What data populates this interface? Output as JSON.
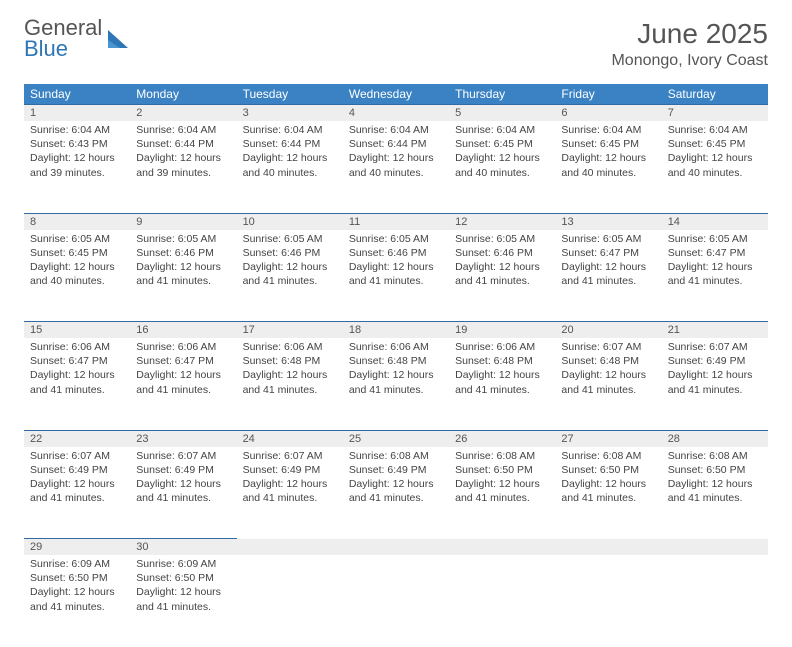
{
  "logo": {
    "word1": "General",
    "word2": "Blue"
  },
  "title": "June 2025",
  "location": "Monongo, Ivory Coast",
  "header_bg": "#3a82c4",
  "row_sep_color": "#2f6ca6",
  "daynum_bg": "#eeeeee",
  "text_color": "#444444",
  "day_headers": [
    "Sunday",
    "Monday",
    "Tuesday",
    "Wednesday",
    "Thursday",
    "Friday",
    "Saturday"
  ],
  "weeks": [
    [
      {
        "n": "1",
        "sr": "6:04 AM",
        "ss": "6:43 PM",
        "dl": "12 hours and 39 minutes."
      },
      {
        "n": "2",
        "sr": "6:04 AM",
        "ss": "6:44 PM",
        "dl": "12 hours and 39 minutes."
      },
      {
        "n": "3",
        "sr": "6:04 AM",
        "ss": "6:44 PM",
        "dl": "12 hours and 40 minutes."
      },
      {
        "n": "4",
        "sr": "6:04 AM",
        "ss": "6:44 PM",
        "dl": "12 hours and 40 minutes."
      },
      {
        "n": "5",
        "sr": "6:04 AM",
        "ss": "6:45 PM",
        "dl": "12 hours and 40 minutes."
      },
      {
        "n": "6",
        "sr": "6:04 AM",
        "ss": "6:45 PM",
        "dl": "12 hours and 40 minutes."
      },
      {
        "n": "7",
        "sr": "6:04 AM",
        "ss": "6:45 PM",
        "dl": "12 hours and 40 minutes."
      }
    ],
    [
      {
        "n": "8",
        "sr": "6:05 AM",
        "ss": "6:45 PM",
        "dl": "12 hours and 40 minutes."
      },
      {
        "n": "9",
        "sr": "6:05 AM",
        "ss": "6:46 PM",
        "dl": "12 hours and 41 minutes."
      },
      {
        "n": "10",
        "sr": "6:05 AM",
        "ss": "6:46 PM",
        "dl": "12 hours and 41 minutes."
      },
      {
        "n": "11",
        "sr": "6:05 AM",
        "ss": "6:46 PM",
        "dl": "12 hours and 41 minutes."
      },
      {
        "n": "12",
        "sr": "6:05 AM",
        "ss": "6:46 PM",
        "dl": "12 hours and 41 minutes."
      },
      {
        "n": "13",
        "sr": "6:05 AM",
        "ss": "6:47 PM",
        "dl": "12 hours and 41 minutes."
      },
      {
        "n": "14",
        "sr": "6:05 AM",
        "ss": "6:47 PM",
        "dl": "12 hours and 41 minutes."
      }
    ],
    [
      {
        "n": "15",
        "sr": "6:06 AM",
        "ss": "6:47 PM",
        "dl": "12 hours and 41 minutes."
      },
      {
        "n": "16",
        "sr": "6:06 AM",
        "ss": "6:47 PM",
        "dl": "12 hours and 41 minutes."
      },
      {
        "n": "17",
        "sr": "6:06 AM",
        "ss": "6:48 PM",
        "dl": "12 hours and 41 minutes."
      },
      {
        "n": "18",
        "sr": "6:06 AM",
        "ss": "6:48 PM",
        "dl": "12 hours and 41 minutes."
      },
      {
        "n": "19",
        "sr": "6:06 AM",
        "ss": "6:48 PM",
        "dl": "12 hours and 41 minutes."
      },
      {
        "n": "20",
        "sr": "6:07 AM",
        "ss": "6:48 PM",
        "dl": "12 hours and 41 minutes."
      },
      {
        "n": "21",
        "sr": "6:07 AM",
        "ss": "6:49 PM",
        "dl": "12 hours and 41 minutes."
      }
    ],
    [
      {
        "n": "22",
        "sr": "6:07 AM",
        "ss": "6:49 PM",
        "dl": "12 hours and 41 minutes."
      },
      {
        "n": "23",
        "sr": "6:07 AM",
        "ss": "6:49 PM",
        "dl": "12 hours and 41 minutes."
      },
      {
        "n": "24",
        "sr": "6:07 AM",
        "ss": "6:49 PM",
        "dl": "12 hours and 41 minutes."
      },
      {
        "n": "25",
        "sr": "6:08 AM",
        "ss": "6:49 PM",
        "dl": "12 hours and 41 minutes."
      },
      {
        "n": "26",
        "sr": "6:08 AM",
        "ss": "6:50 PM",
        "dl": "12 hours and 41 minutes."
      },
      {
        "n": "27",
        "sr": "6:08 AM",
        "ss": "6:50 PM",
        "dl": "12 hours and 41 minutes."
      },
      {
        "n": "28",
        "sr": "6:08 AM",
        "ss": "6:50 PM",
        "dl": "12 hours and 41 minutes."
      }
    ],
    [
      {
        "n": "29",
        "sr": "6:09 AM",
        "ss": "6:50 PM",
        "dl": "12 hours and 41 minutes."
      },
      {
        "n": "30",
        "sr": "6:09 AM",
        "ss": "6:50 PM",
        "dl": "12 hours and 41 minutes."
      },
      null,
      null,
      null,
      null,
      null
    ]
  ],
  "labels": {
    "sunrise": "Sunrise: ",
    "sunset": "Sunset: ",
    "daylight": "Daylight: "
  }
}
